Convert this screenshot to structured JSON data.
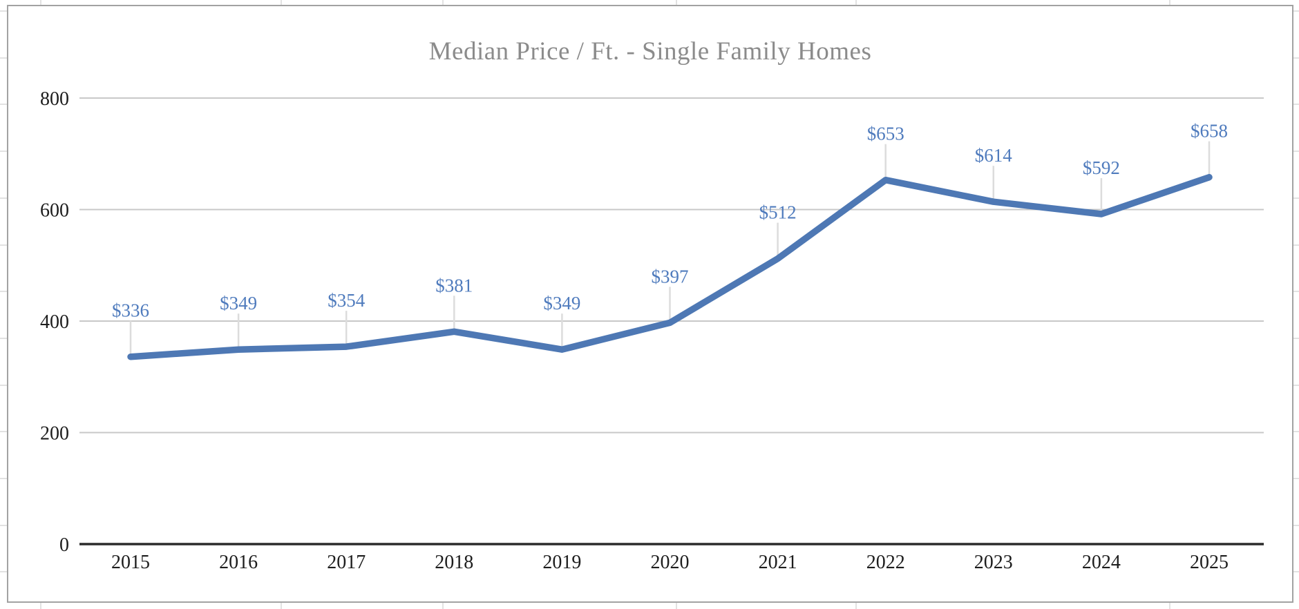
{
  "chart_data": {
    "type": "line",
    "title": "Median Price / Ft. - Single Family Homes",
    "categories": [
      "2015",
      "2016",
      "2017",
      "2018",
      "2019",
      "2020",
      "2021",
      "2022",
      "2023",
      "2024",
      "2025"
    ],
    "values": [
      336,
      349,
      354,
      381,
      349,
      397,
      512,
      653,
      614,
      592,
      658
    ],
    "data_labels": [
      "$336",
      "$349",
      "$354",
      "$381",
      "$349",
      "$397",
      "$512",
      "$653",
      "$614",
      "$592",
      "$658"
    ],
    "y_ticks": [
      0,
      200,
      400,
      600,
      800
    ],
    "y_tick_labels": [
      "0",
      "200",
      "400",
      "600",
      "800"
    ],
    "ylim": [
      0,
      860
    ],
    "xlabel": "",
    "ylabel": "",
    "grid": "horizontal",
    "legend": "none",
    "colors": {
      "series_line": "#4e78b4",
      "data_label_text": "#4f7bbd",
      "leader_line": "#dcdcdc",
      "title_text": "#8b8b8b",
      "axis_text": "#1d1d1d",
      "gridline": "#c8c8c8",
      "axis_line": "#2a2a2a",
      "chart_border": "#a2a2a2",
      "sheet_gridline": "#e2e2e2",
      "background": "#ffffff"
    }
  }
}
